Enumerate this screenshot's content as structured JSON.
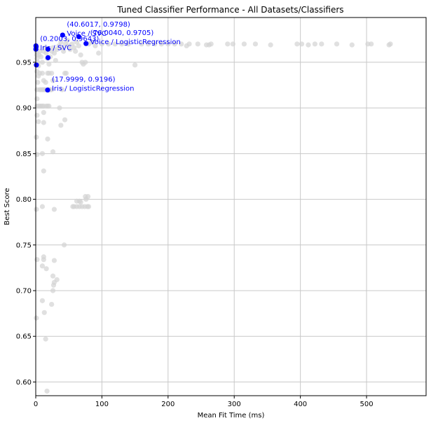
{
  "chart_data": {
    "type": "scatter",
    "title": "Tuned Classifier Performance - All Datasets/Classifiers",
    "xlabel": "Mean Fit Time (ms)",
    "ylabel": "Best Score",
    "xlim": [
      0,
      590
    ],
    "ylim": [
      0.585,
      0.999
    ],
    "x_ticks": [
      0,
      100,
      200,
      300,
      400,
      500
    ],
    "x_tick_labels": [
      "0",
      "100",
      "200",
      "300",
      "400",
      "500"
    ],
    "y_ticks": [
      0.6,
      0.65,
      0.7,
      0.75,
      0.8,
      0.85,
      0.9,
      0.95
    ],
    "y_tick_labels": [
      "0.60",
      "0.65",
      "0.70",
      "0.75",
      "0.80",
      "0.85",
      "0.90",
      "0.95"
    ],
    "grid": true,
    "colors": {
      "background_points": "#d3d3d3",
      "highlight_points": "#0000ff",
      "grid": "#c8c8c8"
    },
    "background_points": [
      [
        0.5,
        0.966
      ],
      [
        1,
        0.962
      ],
      [
        1.5,
        0.958
      ],
      [
        2,
        0.954
      ],
      [
        3,
        0.95
      ],
      [
        4,
        0.946
      ],
      [
        5,
        0.958
      ],
      [
        6,
        0.962
      ],
      [
        8,
        0.956
      ],
      [
        10,
        0.95
      ],
      [
        12,
        0.962
      ],
      [
        14,
        0.966
      ],
      [
        16,
        0.96
      ],
      [
        18,
        0.954
      ],
      [
        20,
        0.948
      ],
      [
        22,
        0.956
      ],
      [
        24,
        0.962
      ],
      [
        26,
        0.966
      ],
      [
        28,
        0.96
      ],
      [
        30,
        0.952
      ],
      [
        32,
        0.964
      ],
      [
        35,
        0.968
      ],
      [
        38,
        0.972
      ],
      [
        40,
        0.966
      ],
      [
        42,
        0.962
      ],
      [
        45,
        0.97
      ],
      [
        48,
        0.974
      ],
      [
        50,
        0.968
      ],
      [
        52,
        0.964
      ],
      [
        55,
        0.97
      ],
      [
        58,
        0.966
      ],
      [
        60,
        0.962
      ],
      [
        62,
        0.972
      ],
      [
        65,
        0.968
      ],
      [
        68,
        0.958
      ],
      [
        70,
        0.95
      ],
      [
        72,
        0.948
      ],
      [
        75,
        0.95
      ],
      [
        80,
        0.97
      ],
      [
        85,
        0.972
      ],
      [
        90,
        0.968
      ],
      [
        95,
        0.96
      ],
      [
        100,
        0.97
      ],
      [
        110,
        0.97
      ],
      [
        120,
        0.97
      ],
      [
        130,
        0.97
      ],
      [
        140,
        0.97
      ],
      [
        150,
        0.947
      ],
      [
        160,
        0.97
      ],
      [
        170,
        0.97
      ],
      [
        180,
        0.97
      ],
      [
        190,
        0.97
      ],
      [
        200,
        0.97
      ],
      [
        210,
        0.97
      ],
      [
        220,
        0.97
      ],
      [
        228,
        0.968
      ],
      [
        232,
        0.97
      ],
      [
        245,
        0.97
      ],
      [
        258,
        0.969
      ],
      [
        262,
        0.969
      ],
      [
        265,
        0.97
      ],
      [
        290,
        0.97
      ],
      [
        298,
        0.97
      ],
      [
        315,
        0.97
      ],
      [
        332,
        0.97
      ],
      [
        355,
        0.969
      ],
      [
        395,
        0.97
      ],
      [
        402,
        0.97
      ],
      [
        412,
        0.969
      ],
      [
        422,
        0.97
      ],
      [
        432,
        0.97
      ],
      [
        455,
        0.97
      ],
      [
        478,
        0.969
      ],
      [
        502,
        0.97
      ],
      [
        507,
        0.97
      ],
      [
        534,
        0.969
      ],
      [
        536,
        0.97
      ],
      [
        2,
        0.94
      ],
      [
        4,
        0.935
      ],
      [
        6,
        0.938
      ],
      [
        3,
        0.928
      ],
      [
        10,
        0.938
      ],
      [
        18,
        0.938
      ],
      [
        20,
        0.938
      ],
      [
        24,
        0.938
      ],
      [
        12,
        0.93
      ],
      [
        15,
        0.928
      ],
      [
        2,
        0.92
      ],
      [
        6,
        0.92
      ],
      [
        8,
        0.92
      ],
      [
        10,
        0.92
      ],
      [
        12,
        0.92
      ],
      [
        14,
        0.92
      ],
      [
        18,
        0.92
      ],
      [
        20,
        0.92
      ],
      [
        22,
        0.92
      ],
      [
        24,
        0.92
      ],
      [
        44,
        0.938
      ],
      [
        46,
        0.938
      ],
      [
        40,
        0.92
      ],
      [
        26,
        0.93
      ],
      [
        2,
        0.91
      ],
      [
        2,
        0.902
      ],
      [
        4,
        0.902
      ],
      [
        6,
        0.902
      ],
      [
        8,
        0.902
      ],
      [
        10,
        0.902
      ],
      [
        12,
        0.902
      ],
      [
        16,
        0.902
      ],
      [
        18,
        0.902
      ],
      [
        20,
        0.902
      ],
      [
        36,
        0.9
      ],
      [
        12,
        0.895
      ],
      [
        2,
        0.892
      ],
      [
        4,
        0.885
      ],
      [
        12,
        0.884
      ],
      [
        38,
        0.881
      ],
      [
        44,
        0.887
      ],
      [
        1,
        0.868
      ],
      [
        18,
        0.866
      ],
      [
        26,
        0.852
      ],
      [
        2,
        0.849
      ],
      [
        10,
        0.85
      ],
      [
        12,
        0.831
      ],
      [
        75,
        0.803
      ],
      [
        79,
        0.803
      ],
      [
        76,
        0.8
      ],
      [
        62,
        0.798
      ],
      [
        66,
        0.798
      ],
      [
        68,
        0.797
      ],
      [
        56,
        0.792
      ],
      [
        58,
        0.792
      ],
      [
        62,
        0.792
      ],
      [
        66,
        0.792
      ],
      [
        70,
        0.792
      ],
      [
        74,
        0.792
      ],
      [
        78,
        0.792
      ],
      [
        80,
        0.792
      ],
      [
        10,
        0.792
      ],
      [
        28,
        0.789
      ],
      [
        1,
        0.789
      ],
      [
        43,
        0.75
      ],
      [
        2,
        0.734
      ],
      [
        12,
        0.737
      ],
      [
        12,
        0.734
      ],
      [
        28,
        0.733
      ],
      [
        10,
        0.727
      ],
      [
        16,
        0.724
      ],
      [
        26,
        0.716
      ],
      [
        32,
        0.712
      ],
      [
        28,
        0.709
      ],
      [
        27,
        0.706
      ],
      [
        26,
        0.7
      ],
      [
        10,
        0.689
      ],
      [
        24,
        0.685
      ],
      [
        13,
        0.676
      ],
      [
        1,
        0.67
      ],
      [
        15,
        0.647
      ],
      [
        17,
        0.59
      ]
    ],
    "highlights": [
      {
        "x": 40.6017,
        "y": 0.9798,
        "label": "(40.6017, 0.9798)",
        "sublabel": "Voice / SVC"
      },
      {
        "x": 76.004,
        "y": 0.9705,
        "label": "(76.0040, 0.9705)",
        "sublabel": "Voice / LogisticRegression"
      },
      {
        "x": 0.2003,
        "y": 0.9643,
        "label": "(0.2003, 0.9643)",
        "sublabel": "Iris / SVC"
      },
      {
        "x": 17.9999,
        "y": 0.9196,
        "label": "(17.9999, 0.9196)",
        "sublabel": "Iris / LogisticRegression"
      }
    ],
    "extra_highlight_points": [
      [
        0.3,
        0.968
      ],
      [
        0.6,
        0.967
      ],
      [
        1.0,
        0.947
      ],
      [
        18.5,
        0.9643
      ],
      [
        18.5,
        0.955
      ],
      [
        65.0,
        0.978
      ]
    ]
  }
}
